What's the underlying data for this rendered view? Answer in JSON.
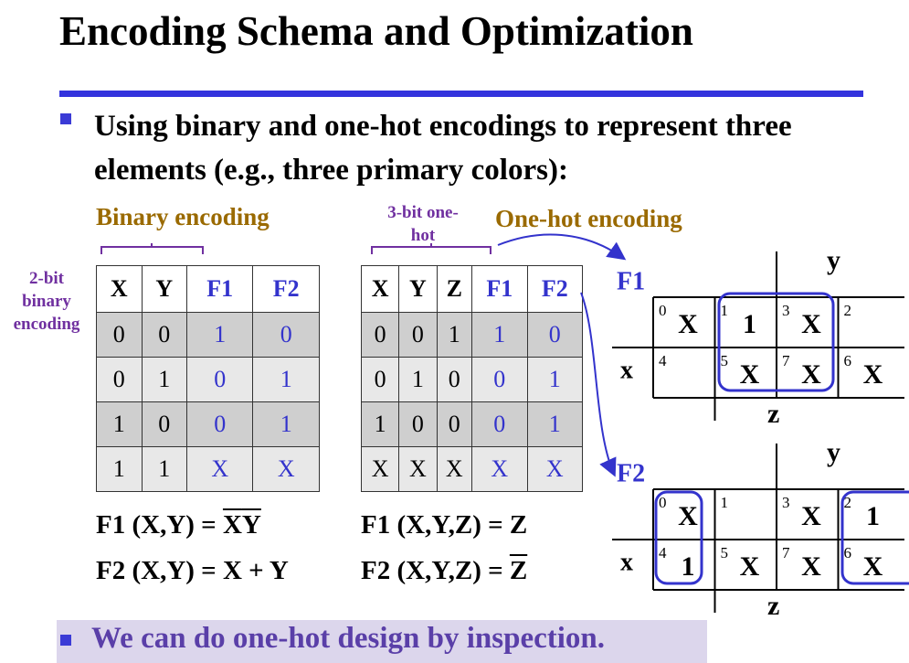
{
  "title": "Encoding Schema and Optimization",
  "bullet": "Using binary and one-hot encodings to represent three elements (e.g., three primary colors):",
  "binary": {
    "heading": "Binary encoding",
    "side_label": "2-bit binary encoding",
    "columns": [
      "X",
      "Y",
      "F1",
      "F2"
    ],
    "rows": [
      [
        "0",
        "0",
        "1",
        "0"
      ],
      [
        "0",
        "1",
        "0",
        "1"
      ],
      [
        "1",
        "0",
        "0",
        "1"
      ],
      [
        "1",
        "1",
        "X",
        "X"
      ]
    ],
    "equations": [
      [
        {
          "text": "F1 (X,Y) = "
        },
        {
          "text": "X",
          "over": true
        },
        {
          "text": "Y",
          "over": true
        }
      ],
      [
        {
          "text": "F2 (X,Y) = X + Y"
        }
      ]
    ]
  },
  "one_hot": {
    "label": "3-bit one-hot",
    "heading": "One-hot encoding",
    "columns": [
      "X",
      "Y",
      "Z",
      "F1",
      "F2"
    ],
    "rows": [
      [
        "0",
        "0",
        "1",
        "1",
        "0"
      ],
      [
        "0",
        "1",
        "0",
        "0",
        "1"
      ],
      [
        "1",
        "0",
        "0",
        "0",
        "1"
      ],
      [
        "X",
        "X",
        "X",
        "X",
        "X"
      ]
    ],
    "equations": [
      [
        {
          "text": "F1 (X,Y,Z) = Z"
        }
      ],
      [
        {
          "text": "F2 (X,Y,Z) = "
        },
        {
          "text": "Z",
          "over": true
        }
      ]
    ]
  },
  "kmaps": [
    {
      "name": "F1",
      "row_var": "x",
      "top_var": "y",
      "bottom_var": "z",
      "cells": [
        [
          {
            "index": "0",
            "value": "X"
          },
          {
            "index": "1",
            "value": "1"
          },
          {
            "index": "3",
            "value": "X"
          },
          {
            "index": "2"
          }
        ],
        [
          {
            "index": "4"
          },
          {
            "index": "5",
            "value": "X"
          },
          {
            "index": "7",
            "value": "X"
          },
          {
            "index": "6",
            "value": "X"
          }
        ]
      ]
    },
    {
      "name": "F2",
      "row_var": "x",
      "top_var": "y",
      "bottom_var": "z",
      "cells": [
        [
          {
            "index": "0",
            "value": "X"
          },
          {
            "index": "1"
          },
          {
            "index": "3",
            "value": "X"
          },
          {
            "index": "2",
            "value": "1"
          }
        ],
        [
          {
            "index": "4",
            "value": "1"
          },
          {
            "index": "5",
            "value": "X"
          },
          {
            "index": "7",
            "value": "X"
          },
          {
            "index": "6",
            "value": "X"
          }
        ]
      ]
    }
  ],
  "conclusion": "We can do one-hot design by inspection."
}
